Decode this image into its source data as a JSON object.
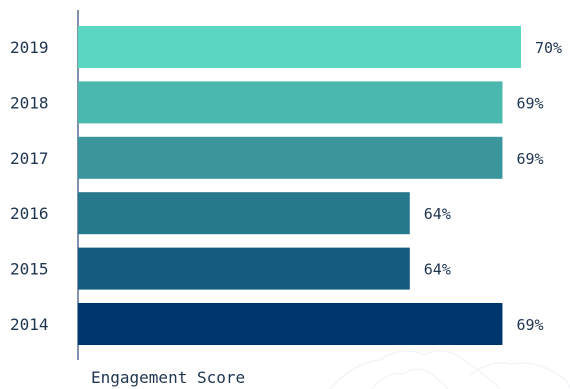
{
  "chart_data": {
    "type": "bar",
    "orientation": "horizontal",
    "categories": [
      "2019",
      "2018",
      "2017",
      "2016",
      "2015",
      "2014"
    ],
    "values": [
      70,
      69,
      69,
      64,
      64,
      69
    ],
    "value_labels": [
      "70%",
      "69%",
      "69%",
      "64%",
      "64%",
      "69%"
    ],
    "bar_colors": [
      "#5bd6c3",
      "#4bb8b0",
      "#3a969b",
      "#26788c",
      "#165c80",
      "#00366e"
    ],
    "xlabel": "Engagement Score",
    "ylabel": "",
    "xlim": [
      0,
      70
    ],
    "grid": false,
    "legend": "none"
  }
}
